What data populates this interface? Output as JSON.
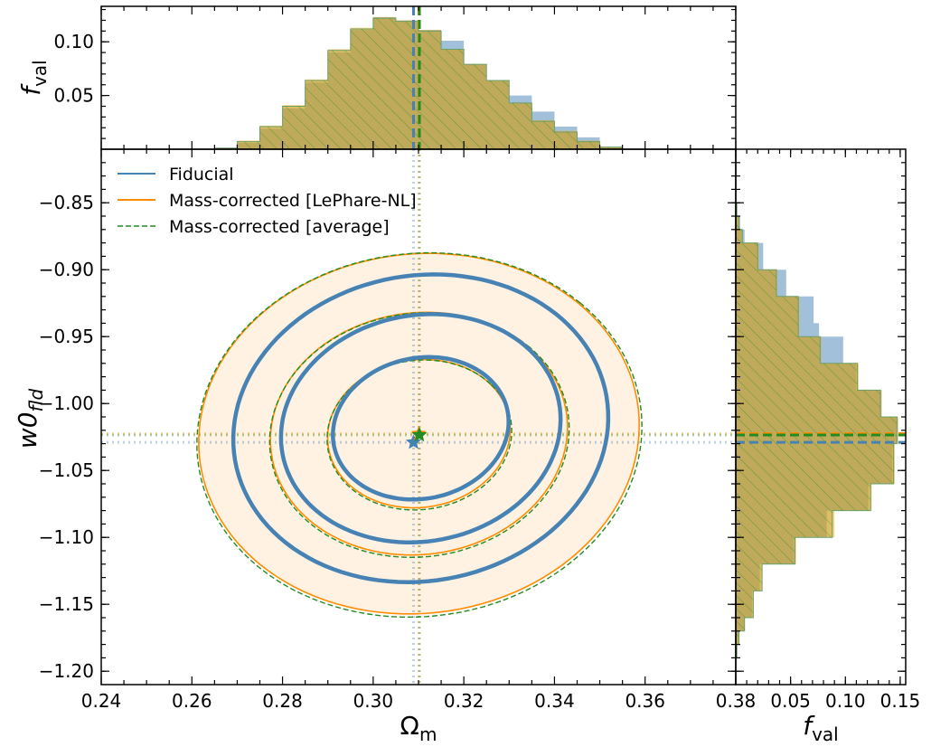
{
  "chart_data": [
    {
      "panel": "main",
      "type": "contour",
      "xlabel": "Ωm",
      "ylabel": "w0fld",
      "xlim": [
        0.24,
        0.38
      ],
      "ylim": [
        -1.21,
        -0.81
      ],
      "xticks": [
        "0.24",
        "0.26",
        "0.28",
        "0.30",
        "0.32",
        "0.34",
        "0.36",
        "0.38"
      ],
      "yticks": [
        "−0.85",
        "−0.90",
        "−0.95",
        "−1.00",
        "−1.05",
        "−1.10",
        "−1.15",
        "−1.20"
      ],
      "legend_placement": "top-left",
      "series": [
        {
          "name": "Fiducial",
          "color": "#4682b4",
          "best_fit": {
            "x": 0.3089,
            "y": -1.029
          },
          "contours": [
            {
              "cx": 0.3105,
              "cy": -1.0185,
              "rx": 0.019,
              "ry": 0.08,
              "rotate": 38
            },
            {
              "cx": 0.3105,
              "cy": -1.0185,
              "rx": 0.03,
              "ry": 0.128,
              "rotate": 40
            },
            {
              "cx": 0.3105,
              "cy": -1.0185,
              "rx": 0.04,
              "ry": 0.172,
              "rotate": 42
            }
          ]
        },
        {
          "name": "Mass-corrected [LePhare-NL]",
          "color": "#ff8c00",
          "fill": "#fff2e2",
          "best_fit": {
            "x": 0.3101,
            "y": -1.0225
          },
          "contours": [
            {
              "cx": 0.3101,
              "cy": -1.0225,
              "rx": 0.0195,
              "ry": 0.085,
              "rotate": 37
            },
            {
              "cx": 0.3101,
              "cy": -1.0225,
              "rx": 0.0315,
              "ry": 0.138,
              "rotate": 40
            },
            {
              "cx": 0.3101,
              "cy": -1.0225,
              "rx": 0.0465,
              "ry": 0.205,
              "rotate": 41
            }
          ]
        },
        {
          "name": "Mass-corrected [average]",
          "color": "#228b22",
          "best_fit": {
            "x": 0.3102,
            "y": -1.0235
          },
          "contours": [
            {
              "cx": 0.3102,
              "cy": -1.0235,
              "rx": 0.0197,
              "ry": 0.086,
              "rotate": 37
            },
            {
              "cx": 0.3102,
              "cy": -1.0235,
              "rx": 0.0318,
              "ry": 0.139,
              "rotate": 40
            },
            {
              "cx": 0.3102,
              "cy": -1.0235,
              "rx": 0.047,
              "ry": 0.207,
              "rotate": 41
            }
          ]
        }
      ]
    },
    {
      "panel": "top",
      "type": "histogram",
      "orientation": "vertical",
      "ylabel": "fval",
      "yticks": [
        "0.05",
        "0.10"
      ],
      "xlim": [
        0.24,
        0.38
      ],
      "ylim": [
        0,
        0.133
      ],
      "bin_edges": [
        0.26,
        0.265,
        0.27,
        0.275,
        0.28,
        0.285,
        0.29,
        0.295,
        0.3,
        0.305,
        0.31,
        0.315,
        0.32,
        0.325,
        0.33,
        0.335,
        0.34,
        0.345,
        0.35,
        0.355,
        0.36
      ],
      "series": [
        {
          "name": "Fiducial",
          "color": "#4682b4",
          "values": [
            0.0,
            0.001,
            0.006,
            0.019,
            0.038,
            0.062,
            0.09,
            0.111,
            0.123,
            0.12,
            0.111,
            0.101,
            0.079,
            0.064,
            0.05,
            0.035,
            0.021,
            0.011,
            0.002,
            0.0
          ],
          "mean": 0.3089
        },
        {
          "name": "Mass-corrected [LePhare-NL]",
          "color": "#ff8c00",
          "values": [
            0.0,
            0.001,
            0.008,
            0.022,
            0.041,
            0.065,
            0.093,
            0.113,
            0.123,
            0.12,
            0.111,
            0.093,
            0.079,
            0.064,
            0.043,
            0.027,
            0.017,
            0.008,
            0.002,
            0.0
          ],
          "mean": 0.3101
        },
        {
          "name": "Mass-corrected [average]",
          "color": "#228b22",
          "values": [
            0.0,
            0.001,
            0.007,
            0.021,
            0.04,
            0.064,
            0.092,
            0.112,
            0.122,
            0.119,
            0.11,
            0.093,
            0.079,
            0.064,
            0.043,
            0.026,
            0.016,
            0.007,
            0.002,
            0.0
          ],
          "mean": 0.3102
        }
      ]
    },
    {
      "panel": "right",
      "type": "histogram",
      "orientation": "horizontal",
      "xlabel": "fval",
      "xticks": [
        "0.05",
        "0.10",
        "0.15"
      ],
      "xlim": [
        0,
        0.155
      ],
      "ylim": [
        -1.21,
        -0.81
      ],
      "bin_edges": [
        -1.19,
        -1.18,
        -1.17,
        -1.16,
        -1.15,
        -1.14,
        -1.13,
        -1.12,
        -1.11,
        -1.1,
        -1.09,
        -1.08,
        -1.07,
        -1.06,
        -1.05,
        -1.04,
        -1.03,
        -1.02,
        -1.01,
        -1.0,
        -0.99,
        -0.98,
        -0.97,
        -0.96,
        -0.95,
        -0.94,
        -0.93,
        -0.92,
        -0.91,
        -0.9,
        -0.89,
        -0.88,
        -0.87,
        -0.86,
        -0.85
      ],
      "series": [
        {
          "name": "Fiducial",
          "color": "#4682b4",
          "values": [
            0.001,
            0.003,
            0.008,
            0.015,
            0.015,
            0.022,
            0.022,
            0.053,
            0.053,
            0.083,
            0.083,
            0.121,
            0.121,
            0.143,
            0.143,
            0.143,
            0.148,
            0.148,
            0.133,
            0.133,
            0.11,
            0.11,
            0.098,
            0.098,
            0.076,
            0.071,
            0.071,
            0.046,
            0.046,
            0.025,
            0.025,
            0.008,
            0.004,
            0.001
          ],
          "mean": -1.029
        },
        {
          "name": "Mass-corrected [LePhare-NL]",
          "color": "#ff8c00",
          "values": [
            0.001,
            0.003,
            0.008,
            0.016,
            0.016,
            0.024,
            0.024,
            0.055,
            0.055,
            0.09,
            0.09,
            0.124,
            0.124,
            0.145,
            0.145,
            0.145,
            0.148,
            0.148,
            0.133,
            0.133,
            0.112,
            0.112,
            0.078,
            0.078,
            0.058,
            0.058,
            0.058,
            0.038,
            0.038,
            0.021,
            0.021,
            0.006,
            0.003,
            0.001
          ],
          "mean": -1.0225
        },
        {
          "name": "Mass-corrected [average]",
          "color": "#228b22",
          "values": [
            0.001,
            0.003,
            0.008,
            0.016,
            0.016,
            0.024,
            0.024,
            0.054,
            0.054,
            0.088,
            0.088,
            0.123,
            0.123,
            0.144,
            0.144,
            0.144,
            0.147,
            0.147,
            0.132,
            0.132,
            0.111,
            0.111,
            0.077,
            0.077,
            0.057,
            0.057,
            0.057,
            0.037,
            0.037,
            0.02,
            0.02,
            0.006,
            0.003,
            0.001
          ],
          "mean": -1.0235
        }
      ]
    }
  ]
}
